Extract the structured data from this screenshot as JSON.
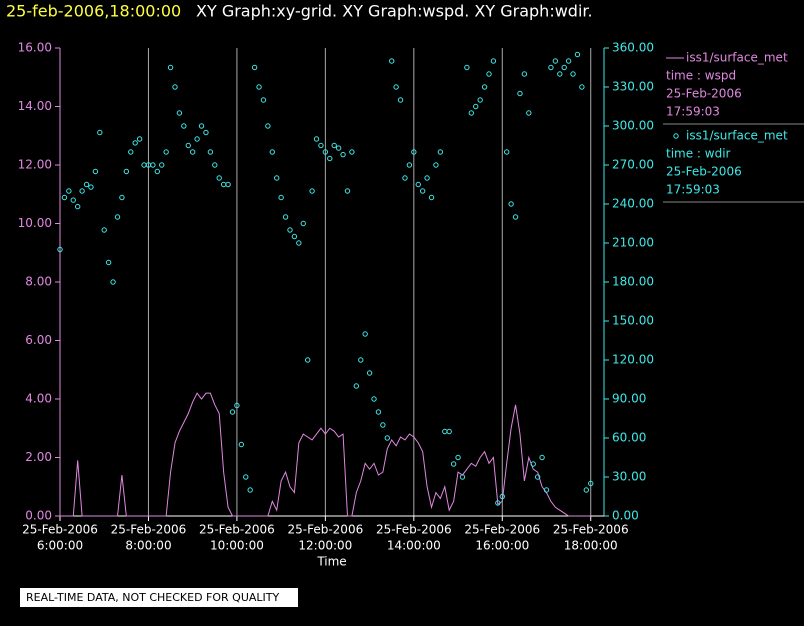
{
  "chart_data": {
    "type": "line",
    "title": "25-feb-2006,18:00:00",
    "subtitle": "XY Graph:xy-grid.  XY Graph:wspd.  XY Graph:wdir.",
    "x_label": "Time",
    "footer": "REAL-TIME DATA, NOT CHECKED FOR QUALITY",
    "grid": true,
    "legend": "right",
    "x": [
      6,
      6.1,
      6.2,
      6.3,
      6.4,
      6.5,
      6.6,
      6.7,
      6.8,
      6.9,
      7,
      7.1,
      7.2,
      7.3,
      7.4,
      7.5,
      7.6,
      7.7,
      7.8,
      7.9,
      8,
      8.1,
      8.2,
      8.3,
      8.4,
      8.5,
      8.6,
      8.7,
      8.8,
      8.9,
      9,
      9.1,
      9.2,
      9.3,
      9.4,
      9.5,
      9.6,
      9.7,
      9.8,
      9.9,
      10,
      10.1,
      10.2,
      10.3,
      10.4,
      10.5,
      10.6,
      10.7,
      10.8,
      10.9,
      11,
      11.1,
      11.2,
      11.3,
      11.4,
      11.5,
      11.6,
      11.7,
      11.8,
      11.9,
      12,
      12.1,
      12.2,
      12.3,
      12.4,
      12.5,
      12.6,
      12.7,
      12.8,
      12.9,
      13,
      13.1,
      13.2,
      13.3,
      13.4,
      13.5,
      13.6,
      13.7,
      13.8,
      13.9,
      14,
      14.1,
      14.2,
      14.3,
      14.4,
      14.5,
      14.6,
      14.7,
      14.8,
      14.9,
      15,
      15.1,
      15.2,
      15.3,
      15.4,
      15.5,
      15.6,
      15.7,
      15.8,
      15.9,
      16,
      16.1,
      16.2,
      16.3,
      16.4,
      16.5,
      16.6,
      16.7,
      16.8,
      16.9,
      17,
      17.1,
      17.2,
      17.3,
      17.4,
      17.5,
      17.6,
      17.7,
      17.8,
      17.9,
      18
    ],
    "xlim": [
      6,
      18.3
    ],
    "xticks": [
      {
        "value": 6,
        "label": "6:00:00"
      },
      {
        "value": 8,
        "label": "8:00:00"
      },
      {
        "value": 10,
        "label": "10:00:00"
      },
      {
        "value": 12,
        "label": "12:00:00"
      },
      {
        "value": 14,
        "label": "14:00:00"
      },
      {
        "value": 16,
        "label": "16:00:00"
      },
      {
        "value": 18,
        "label": "18:00:00"
      }
    ],
    "xtick_dates": [
      "25-Feb-2006",
      "25-Feb-2006",
      "25-Feb-2006",
      "25-Feb-2006",
      "25-Feb-2006",
      "25-Feb-2006",
      "25-Feb-2006"
    ],
    "ylim": [
      0,
      16
    ],
    "yticks": [
      {
        "value": 0,
        "label": "0.00"
      },
      {
        "value": 2,
        "label": "2.00"
      },
      {
        "value": 4,
        "label": "4.00"
      },
      {
        "value": 6,
        "label": "6.00"
      },
      {
        "value": 8,
        "label": "8.00"
      },
      {
        "value": 10,
        "label": "10.00"
      },
      {
        "value": 12,
        "label": "12.00"
      },
      {
        "value": 14,
        "label": "14.00"
      },
      {
        "value": 16,
        "label": "16.00"
      }
    ],
    "y2lim": [
      0,
      360
    ],
    "y2ticks": [
      {
        "value": 0,
        "label": "0.00"
      },
      {
        "value": 30,
        "label": "30.00"
      },
      {
        "value": 60,
        "label": "60.00"
      },
      {
        "value": 90,
        "label": "90.00"
      },
      {
        "value": 120,
        "label": "120.00"
      },
      {
        "value": 150,
        "label": "150.00"
      },
      {
        "value": 180,
        "label": "180.00"
      },
      {
        "value": 210,
        "label": "210.00"
      },
      {
        "value": 240,
        "label": "240.00"
      },
      {
        "value": 270,
        "label": "270.00"
      },
      {
        "value": 300,
        "label": "300.00"
      },
      {
        "value": 330,
        "label": "330.00"
      },
      {
        "value": 360,
        "label": "360.00"
      }
    ],
    "series": [
      {
        "name": "iss1/surface_met",
        "legend_lines": [
          "time : wspd",
          "25-Feb-2006",
          "17:59:03"
        ],
        "color": "#e088e0",
        "style": "line",
        "axis": "y",
        "values": [
          0,
          0,
          0,
          0,
          1.9,
          0,
          0,
          0,
          0,
          0,
          0,
          0,
          0,
          0,
          1.4,
          0,
          0,
          0,
          0,
          0,
          0,
          0,
          0,
          0,
          0,
          1.5,
          2.5,
          2.9,
          3.2,
          3.5,
          3.9,
          4.2,
          4.0,
          4.2,
          4.2,
          3.8,
          3.5,
          1.5,
          0.3,
          0,
          0,
          0,
          0,
          0,
          0,
          0,
          0,
          0,
          0.5,
          0.2,
          1.2,
          1.5,
          1.0,
          0.8,
          2.5,
          2.8,
          2.7,
          2.6,
          2.8,
          3.0,
          2.8,
          3.0,
          2.9,
          2.7,
          2.8,
          0,
          0,
          0.8,
          1.2,
          1.8,
          1.6,
          1.8,
          1.4,
          1.5,
          2.3,
          2.6,
          2.4,
          2.7,
          2.6,
          2.8,
          2.7,
          2.5,
          2.2,
          1.0,
          0.3,
          0.8,
          0.6,
          1.0,
          0.2,
          0.5,
          1.5,
          1.4,
          1.6,
          1.8,
          1.7,
          2.0,
          2.2,
          1.8,
          2.0,
          0.4,
          0.5,
          1.8,
          3.0,
          3.8,
          2.8,
          1.2,
          2.0,
          1.6,
          1.5,
          1.0,
          0.8,
          0.5,
          0.3,
          0.2,
          0.1,
          0,
          0,
          0,
          0,
          0,
          0
        ]
      },
      {
        "name": "iss1/surface_met",
        "legend_lines": [
          "time : wdir",
          "25-Feb-2006",
          "17:59:03"
        ],
        "color": "#40e8e8",
        "style": "markers",
        "axis": "y2",
        "values": [
          205,
          245,
          250,
          243,
          238,
          250,
          255,
          253,
          265,
          295,
          220,
          195,
          180,
          230,
          245,
          265,
          280,
          287,
          290,
          270,
          270,
          270,
          265,
          270,
          280,
          345,
          330,
          310,
          300,
          285,
          280,
          290,
          300,
          295,
          280,
          270,
          260,
          255,
          255,
          80,
          85,
          55,
          30,
          20,
          345,
          330,
          320,
          300,
          280,
          260,
          245,
          230,
          220,
          215,
          210,
          225,
          120,
          250,
          290,
          285,
          280,
          275,
          285,
          283,
          278,
          250,
          280,
          100,
          120,
          140,
          110,
          90,
          80,
          70,
          60,
          350,
          330,
          320,
          260,
          270,
          280,
          255,
          250,
          260,
          245,
          270,
          280,
          65,
          65,
          40,
          45,
          30,
          345,
          310,
          315,
          320,
          330,
          340,
          350,
          10,
          15,
          280,
          240,
          230,
          325,
          340,
          310,
          40,
          30,
          45,
          20,
          345,
          350,
          340,
          345,
          350,
          340,
          355,
          330,
          20,
          25
        ]
      }
    ]
  }
}
